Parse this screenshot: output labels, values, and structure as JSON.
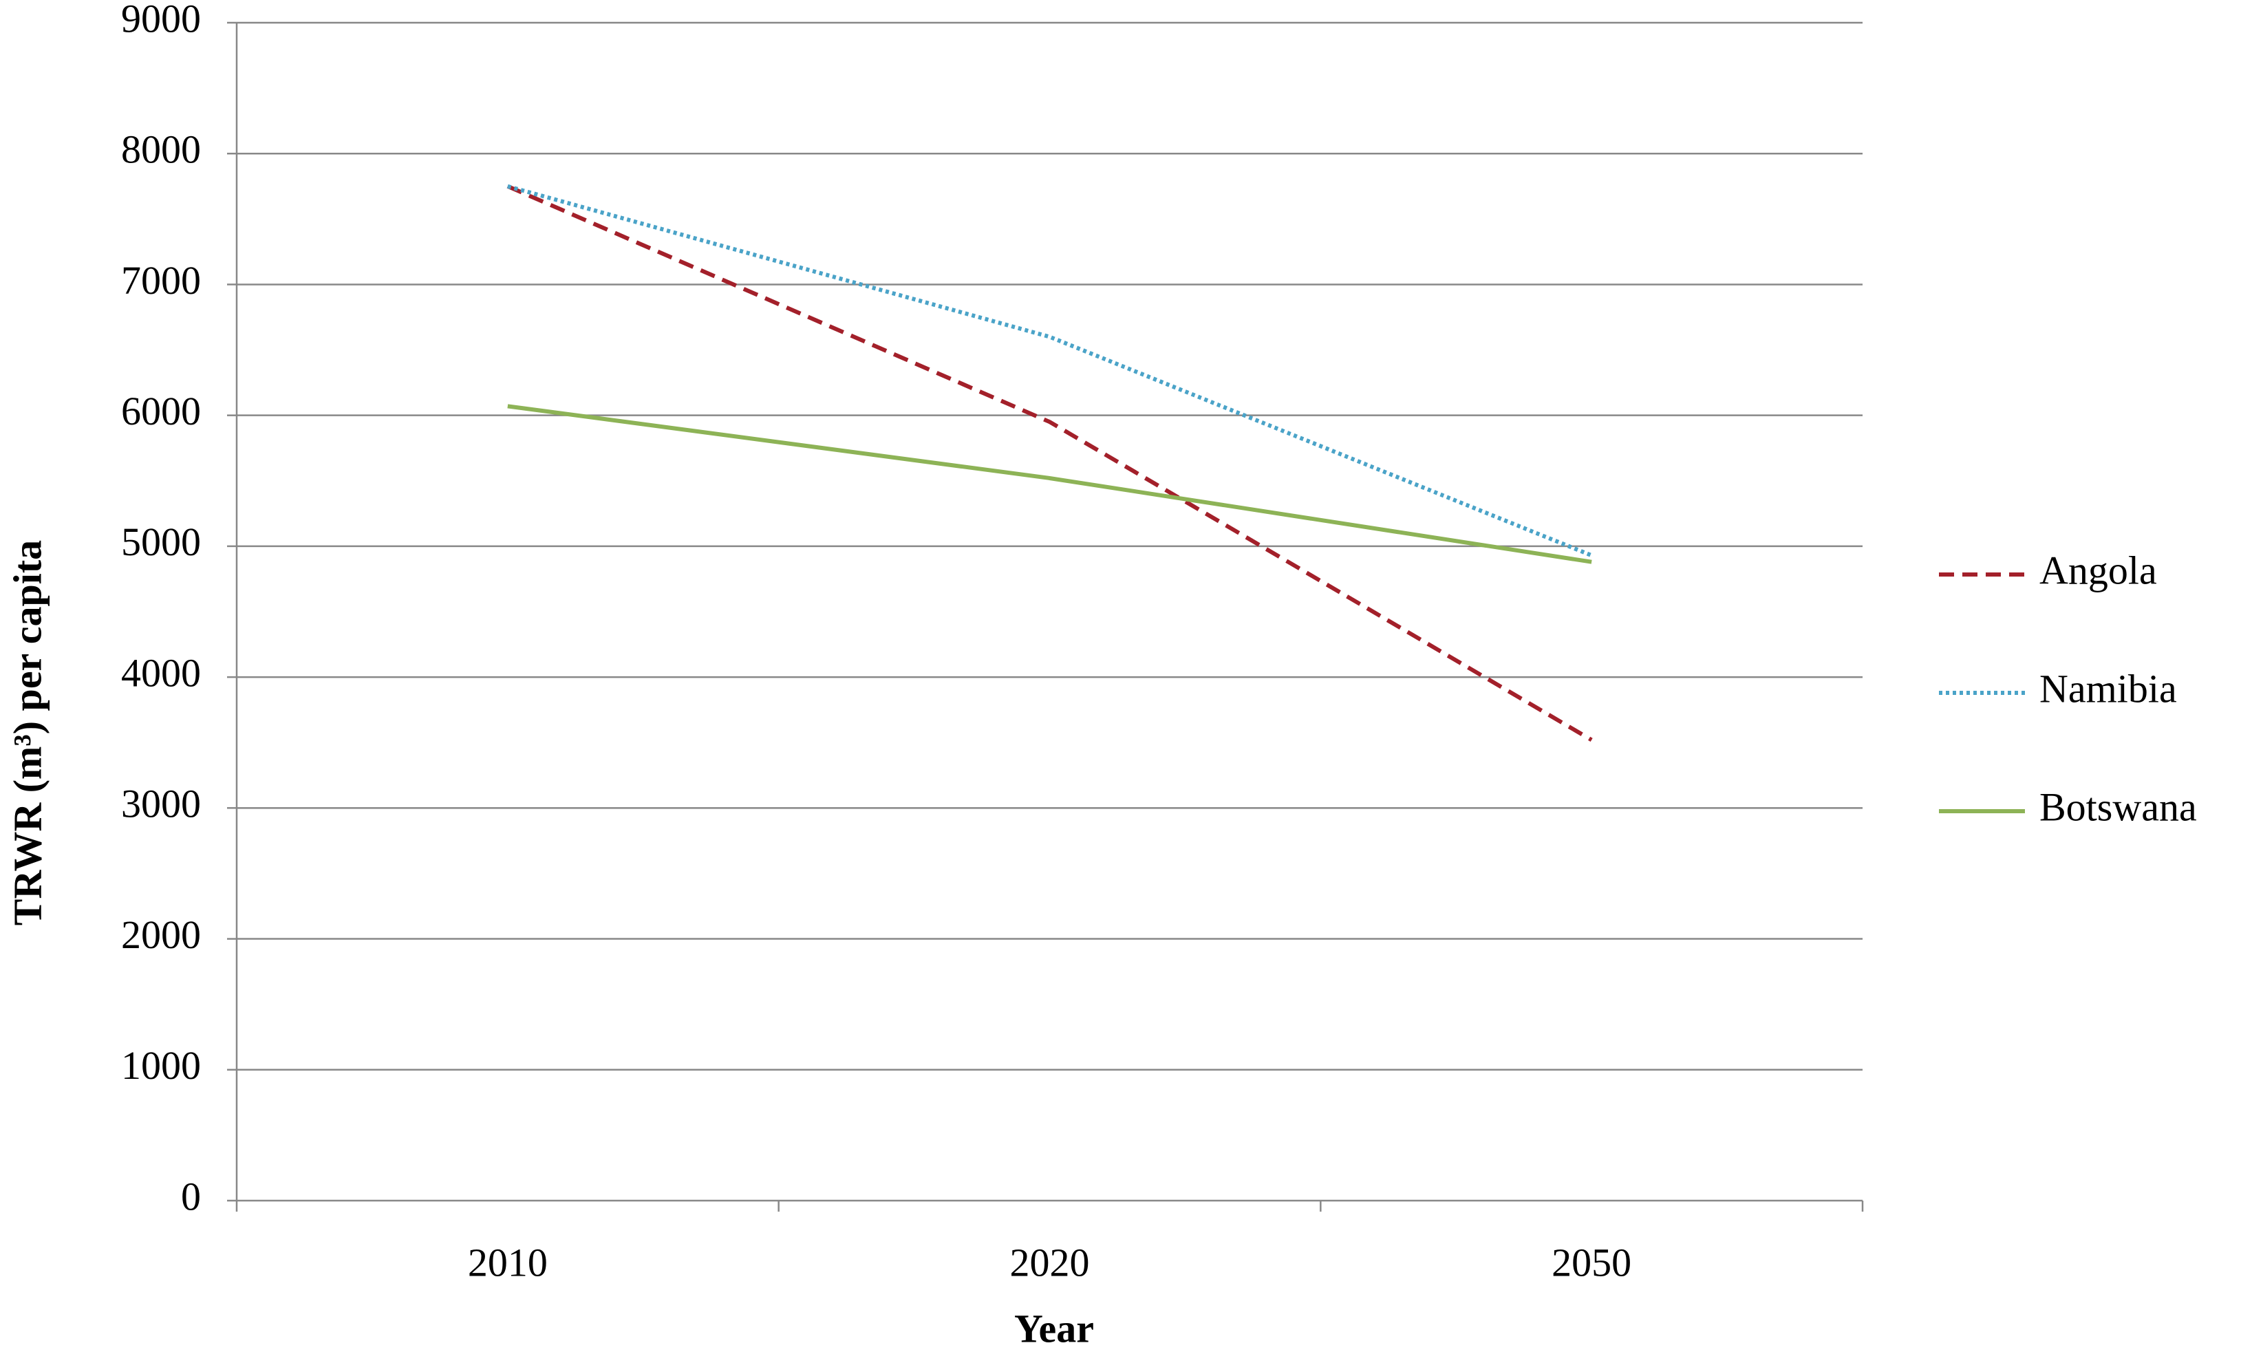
{
  "chart_data": {
    "type": "line",
    "x_label": "Year",
    "y_label": "TRWR (m³) per capita",
    "categories": [
      "2010",
      "2020",
      "2050"
    ],
    "series": [
      {
        "name": "Angola",
        "color": "#a3202a",
        "style": "dashed",
        "values": [
          7750,
          5950,
          3520
        ]
      },
      {
        "name": "Namibia",
        "color": "#4aa3c8",
        "style": "dotted",
        "values": [
          7750,
          6600,
          4930
        ]
      },
      {
        "name": "Botswana",
        "color": "#8db356",
        "style": "solid",
        "values": [
          6070,
          5520,
          4880
        ]
      }
    ],
    "ylim": [
      0,
      9000
    ],
    "yticks": [
      0,
      1000,
      2000,
      3000,
      4000,
      5000,
      6000,
      7000,
      8000,
      9000
    ],
    "grid": true,
    "legend": "right"
  }
}
